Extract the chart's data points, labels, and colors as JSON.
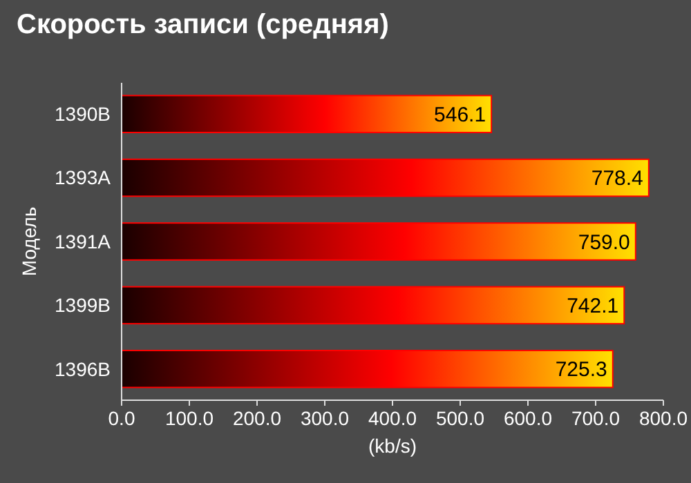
{
  "chart_data": {
    "type": "bar",
    "orientation": "horizontal",
    "title": "Скорость записи (средняя)",
    "ylabel": "Модель",
    "xlabel": "(kb/s)",
    "categories": [
      "1390B",
      "1393A",
      "1391A",
      "1399B",
      "1396B"
    ],
    "values": [
      546.1,
      778.4,
      759.0,
      742.1,
      725.3
    ],
    "value_labels": [
      "546.1",
      "778.4",
      "759.0",
      "742.1",
      "725.3"
    ],
    "color": "#ff0000",
    "xlim": [
      0,
      800
    ],
    "xticks": [
      {
        "value": 0,
        "label": "0.0"
      },
      {
        "value": 100,
        "label": "100.0"
      },
      {
        "value": 200,
        "label": "200.0"
      },
      {
        "value": 300,
        "label": "300.0"
      },
      {
        "value": 400,
        "label": "400.0"
      },
      {
        "value": 500,
        "label": "500.0"
      },
      {
        "value": 600,
        "label": "600.0"
      },
      {
        "value": 700,
        "label": "700.0"
      },
      {
        "value": 800,
        "label": "800.0"
      }
    ]
  }
}
